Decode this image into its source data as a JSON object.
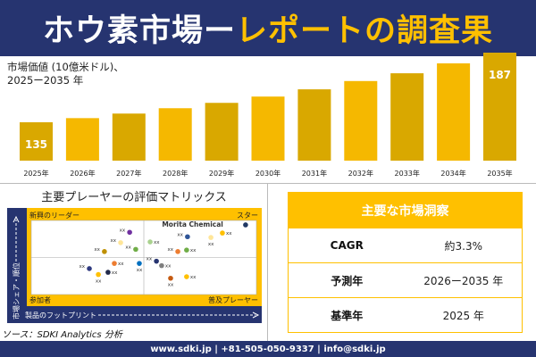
{
  "header": {
    "title_white": "ホウ素市場ー",
    "title_yellow": "レポートの調査果"
  },
  "chart_data": {
    "type": "bar",
    "title": "市場価値 (10億米ドル)、",
    "subtitle": "2025ー2035 年",
    "categories": [
      "2025年",
      "2026年",
      "2027年",
      "2028年",
      "2029年",
      "2030年",
      "2031年",
      "2032年",
      "2033年",
      "2034年",
      "2035年"
    ],
    "values": [
      135,
      138.1,
      141.5,
      145.5,
      149.5,
      154.2,
      159.6,
      165.8,
      171.6,
      179.0,
      187
    ],
    "data_labels": {
      "0": "135",
      "10": "187"
    },
    "colors": [
      "#d4a300",
      "#ffc000"
    ]
  },
  "matrix": {
    "title": "主要プレーヤーの評価マトリックス",
    "quadrants": {
      "top_left": "新興のリーダー",
      "top_right": "スター",
      "bottom_left": "参加者",
      "bottom_right": "普及プレーヤー"
    },
    "y_axis": "市場シェア・順位",
    "x_axis": "製品のフットプリント",
    "points": [
      {
        "x": 43.7,
        "y": 84,
        "color": "#7030a0",
        "label": "xx",
        "side": "left"
      },
      {
        "x": 39.7,
        "y": 70,
        "color": "#ffe699",
        "label": "xx",
        "side": "left"
      },
      {
        "x": 32.5,
        "y": 58,
        "color": "#bf9000",
        "label": "xx",
        "side": "left"
      },
      {
        "x": 46.4,
        "y": 61,
        "color": "#70ad47",
        "label": "xx",
        "side": "left"
      },
      {
        "x": 52.8,
        "y": 71,
        "color": "#a9d18e",
        "label": "xx",
        "side": "right"
      },
      {
        "x": 69.4,
        "y": 78,
        "color": "#2f5597",
        "label": "xx",
        "side": "left"
      },
      {
        "x": 79.8,
        "y": 77,
        "color": "#ffe699",
        "label": "xx",
        "side": "below"
      },
      {
        "x": 84.9,
        "y": 83,
        "color": "#ffc000",
        "label": "xx",
        "side": "right"
      },
      {
        "x": 95.2,
        "y": 94,
        "color": "#203864",
        "label": "Morita Chemical",
        "side": "farleft"
      },
      {
        "x": 65.1,
        "y": 58,
        "color": "#ed7d31",
        "label": "xx",
        "side": "left"
      },
      {
        "x": 69.0,
        "y": 60,
        "color": "#70ad47",
        "label": "xx",
        "side": "right"
      },
      {
        "x": 25.8,
        "y": 35,
        "color": "#2f3a80",
        "label": "xx",
        "side": "left"
      },
      {
        "x": 36.9,
        "y": 42,
        "color": "#ed7d31",
        "label": "xx",
        "side": "right"
      },
      {
        "x": 48.0,
        "y": 42,
        "color": "#0070c0",
        "label": "xx",
        "side": "below"
      },
      {
        "x": 29.8,
        "y": 27,
        "color": "#ffc000",
        "label": "xx",
        "side": "below"
      },
      {
        "x": 34.1,
        "y": 30,
        "color": "#222a4a",
        "label": "xx",
        "side": "right"
      },
      {
        "x": 55.6,
        "y": 45,
        "color": "#263470",
        "label": "xx",
        "side": "left"
      },
      {
        "x": 57.9,
        "y": 39,
        "color": "#7f7f7f",
        "label": "xx",
        "side": "right"
      },
      {
        "x": 61.9,
        "y": 22,
        "color": "#c55a11",
        "label": "xx",
        "side": "below"
      },
      {
        "x": 69.0,
        "y": 24,
        "color": "#ffc000",
        "label": "xx",
        "side": "right"
      }
    ]
  },
  "source": "ソース：SDKI Analytics 分析",
  "insights": {
    "title": "主要な市場洞察",
    "rows": [
      {
        "key": "CAGR",
        "value": "約3.3%"
      },
      {
        "key": "予測年",
        "value": "2026ー2035 年"
      },
      {
        "key": "基準年",
        "value": "2025 年"
      }
    ]
  },
  "footer": "www.sdki.jp | +81-505-050-9337 | info@sdki.jp"
}
